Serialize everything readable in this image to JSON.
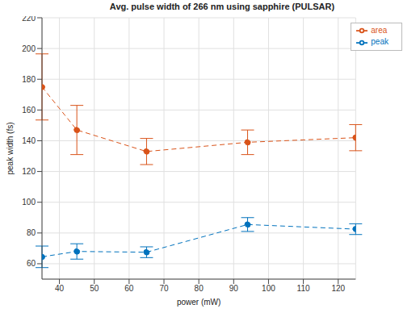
{
  "chart_data": {
    "type": "line",
    "title": "Avg. pulse width of 266 nm using sapphire (PULSAR)",
    "x_label": "power (mW)",
    "y_label": "peak width (fs)",
    "x": [
      35,
      45,
      65,
      94,
      125
    ],
    "series": [
      {
        "name": "peak",
        "color": "#0072bd",
        "values": [
          64.5,
          68,
          67.5,
          85.5,
          82.5
        ],
        "errors": [
          7,
          5,
          3.5,
          4.5,
          3.5
        ],
        "marker": "o",
        "line_style": "dashed"
      },
      {
        "name": "area",
        "color": "#d95319",
        "values": [
          175,
          147,
          133,
          139,
          142
        ],
        "errors": [
          21.5,
          16,
          8.5,
          8,
          8.5
        ],
        "marker": "o",
        "line_style": "dashed"
      }
    ],
    "xlim": [
      35,
      125
    ],
    "xticks": [
      40,
      50,
      60,
      70,
      80,
      90,
      100,
      110,
      120
    ],
    "ylim": [
      50,
      220
    ],
    "yticks": [
      60,
      80,
      100,
      120,
      140,
      160,
      180,
      200,
      220
    ],
    "grid": true,
    "legend": "top-right"
  }
}
